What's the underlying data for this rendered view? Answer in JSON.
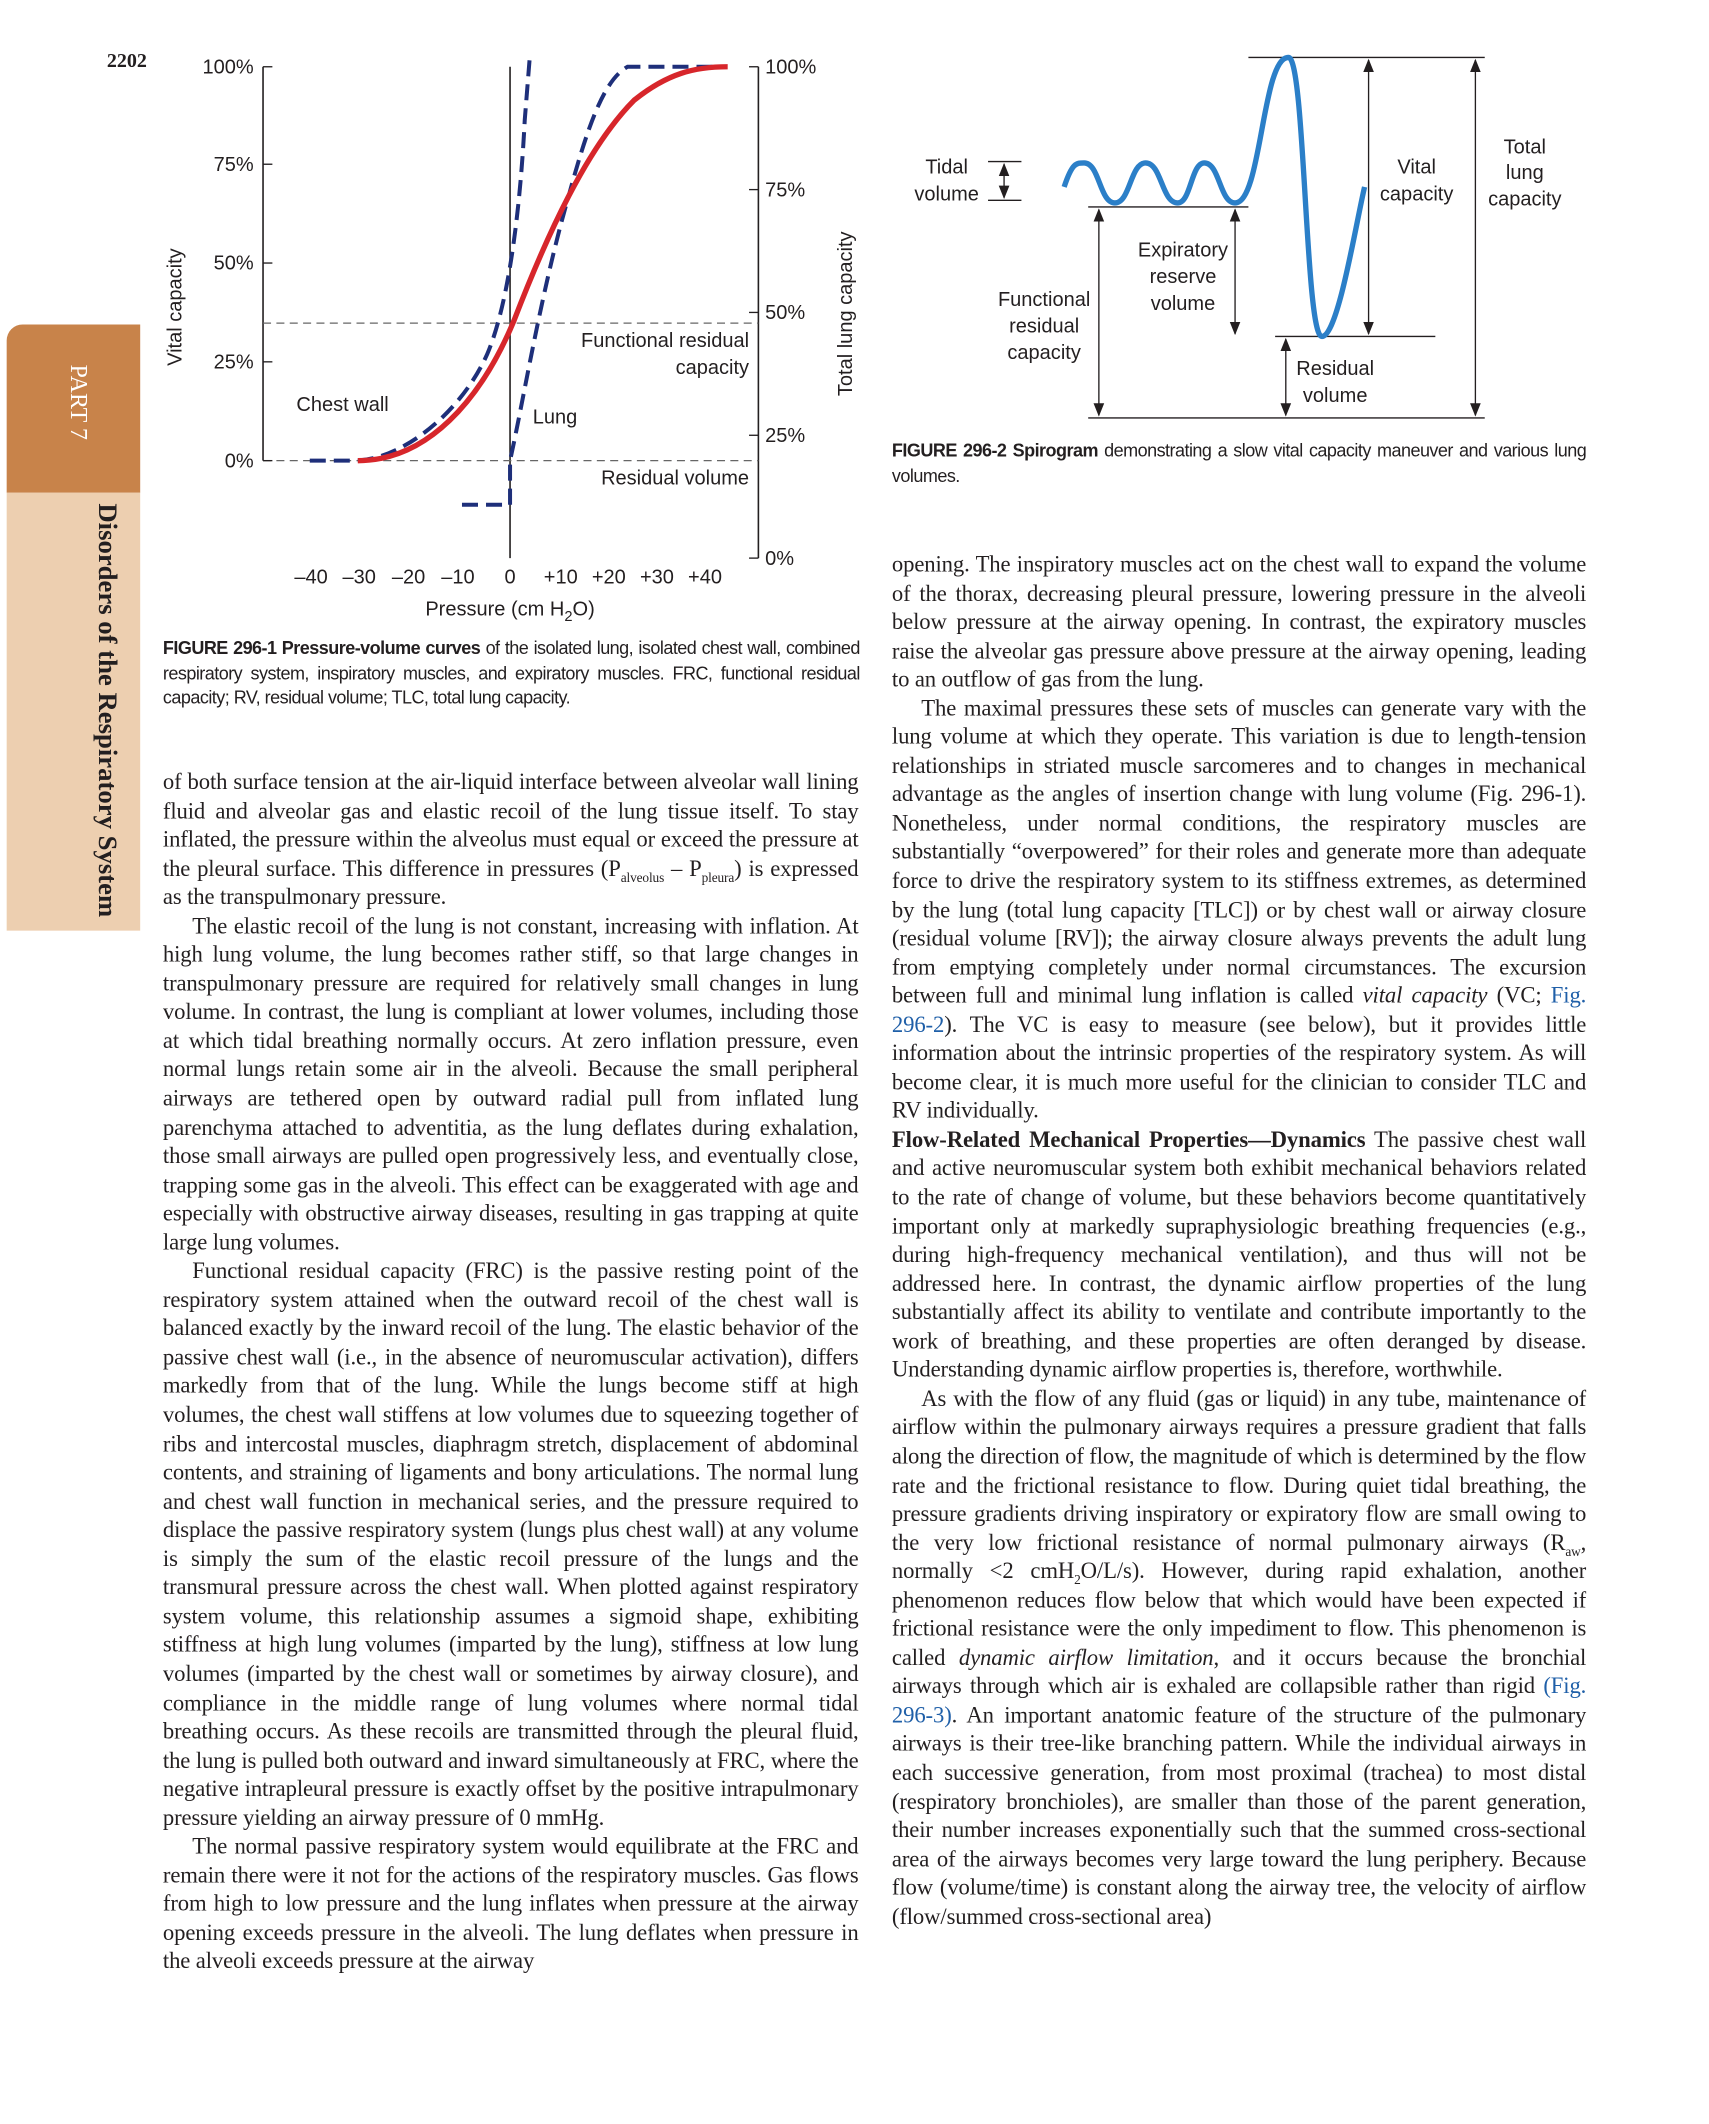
{
  "page_number": "2202",
  "side_tab": {
    "part": "PART 7",
    "section": "Disorders of the Respiratory System"
  },
  "figure_1": {
    "y_left_ticks": [
      "100%",
      "75%",
      "50%",
      "25%",
      "0%"
    ],
    "y_right_ticks": [
      "100%",
      "75%",
      "50%",
      "25%",
      "0%"
    ],
    "x_ticks": [
      "–40",
      "–30",
      "–20",
      "–10",
      "0",
      "+10",
      "+20",
      "+30",
      "+40"
    ],
    "y_left_label": "Vital capacity",
    "y_right_label": "Total lung capacity",
    "x_label": [
      "Pressure (cm H",
      {
        "sub": "2"
      },
      "O)"
    ],
    "chest_wall": "Chest wall",
    "lung": "Lung",
    "frc": [
      "Functional residual",
      "capacity"
    ],
    "rv": "Residual volume",
    "caption": [
      {
        "b": "FIGURE 296-1 Pressure-volume curves"
      },
      " of the isolated lung, isolated chest wall, combined respiratory system, inspiratory muscles, and expiratory muscles. FRC, functional residual capacity; RV, residual volume; TLC, total lung capacity."
    ]
  },
  "figure_2": {
    "tidal": [
      "Tidal",
      "volume"
    ],
    "erv": [
      "Expiratory",
      "reserve",
      "volume"
    ],
    "frc": [
      "Functional",
      "residual",
      "capacity"
    ],
    "rv": [
      "Residual",
      "volume"
    ],
    "vc": [
      "Vital",
      "capacity"
    ],
    "tlc": [
      "Total",
      "lung",
      "capacity"
    ],
    "caption": [
      {
        "b": "FIGURE 296-2 Spirogram"
      },
      " demonstrating a slow vital capacity maneuver and various lung volumes."
    ]
  },
  "left_column": [
    [
      "of both surface tension at the air-liquid interface between alveolar wall lining fluid and alveolar gas and elastic recoil of the lung tissue itself. To stay inflated, the pressure within the alveolus must equal or exceed the pressure at the pleural surface. This difference in pressures (P",
      {
        "sub": "alveolus"
      },
      " – P",
      {
        "sub": "pleura"
      },
      ") is expressed as the transpulmonary pressure."
    ],
    [
      "The elastic recoil of the lung is not constant, increasing with inflation. At high lung volume, the lung becomes rather stiff, so that large changes in transpulmonary pressure are required for relatively small changes in lung volume. In contrast, the lung is compliant at lower volumes, including those at which tidal breathing normally occurs. At zero inflation pressure, even normal lungs retain some air in the alveoli. Because the small peripheral airways are tethered open by outward radial pull from inflated lung parenchyma attached to adventitia, as the lung deflates during exhalation, those small airways are pulled open progressively less, and eventually close, trapping some gas in the alveoli. This effect can be exaggerated with age and especially with obstructive airway diseases, resulting in gas trapping at quite large lung volumes."
    ],
    [
      "Functional residual capacity (FRC) is the passive resting point of the respiratory system attained when the outward recoil of the chest wall is balanced exactly by the inward recoil of the lung. The elastic behavior of the passive chest wall (i.e., in the absence of neuromuscular activation), differs markedly from that of the lung. While the lungs become stiff at high volumes, the chest wall stiffens at low volumes due to squeezing together of ribs and intercostal muscles, diaphragm stretch, displacement of abdominal contents, and straining of ligaments and bony articulations. The normal lung and chest wall function in mechanical series, and the pressure required to displace the passive respiratory system (lungs plus chest wall) at any volume is simply the sum of the elastic recoil pressure of the lungs and the transmural pressure across the chest wall. When plotted against respiratory system volume, this relationship assumes a sigmoid shape, exhibiting stiffness at high lung volumes (imparted by the lung), stiffness at low lung volumes (imparted by the chest wall or sometimes by airway closure), and compliance in the middle range of lung volumes where normal tidal breathing occurs. As these recoils are transmitted through the pleural fluid, the lung is pulled both outward and inward simultaneously at FRC, where the negative intrapleural pressure is exactly offset by the positive intrapulmonary pressure yielding an airway pressure of 0 mmHg."
    ],
    [
      "The normal passive respiratory system would equilibrate at the FRC and remain there were it not for the actions of the respiratory muscles. Gas flows from high to low pressure and the lung inflates when pressure at the airway opening exceeds pressure in the alveoli. The lung deflates when pressure in the alveoli exceeds pressure at the airway"
    ]
  ],
  "right_column": [
    [
      "opening. The inspiratory muscles act on the chest wall to expand the volume of the thorax, decreasing pleural pressure, lowering pressure in the alveoli below pressure at the airway opening. In contrast, the expiratory muscles raise the alveolar gas pressure above pressure at the airway opening, leading to an outflow of gas from the lung."
    ],
    [
      "The maximal pressures these sets of muscles can generate vary with the lung volume at which they operate. This variation is due to length-tension relationships in striated muscle sarcomeres and to changes in mechanical advantage as the angles of insertion change with lung volume (Fig. 296-1). Nonetheless, under normal conditions, the respiratory muscles are substantially “overpowered” for their roles and generate more than adequate force to drive the respiratory system to its stiffness extremes, as determined by the lung (total lung capacity [TLC]) or by chest wall or airway closure (residual volume [RV]); the airway closure always prevents the adult lung from emptying completely under normal circumstances. The excursion between full and minimal lung inflation is called ",
      {
        "i": "vital capacity"
      },
      " (VC; ",
      {
        "a": "Fig. 296-2"
      },
      "). The VC is easy to measure (see below), but it provides little information about the intrinsic properties of the respiratory system. As will become clear, it is much more useful for the clinician to consider TLC and RV individually."
    ],
    [
      {
        "b": "Flow-Related Mechanical Properties—Dynamics"
      },
      "  The passive chest wall and active neuromuscular system both exhibit mechanical behaviors related to the rate of change of volume, but these behaviors become quantitatively important only at markedly supraphysiologic breathing frequencies (e.g., during high-frequency mechanical ventilation), and thus will not be addressed here. In contrast, the dynamic airflow properties of the lung substantially affect its ability to ventilate and contribute importantly to the work of breathing, and these properties are often deranged by disease. Understanding dynamic airflow properties is, therefore, worthwhile."
    ],
    [
      "As with the flow of any fluid (gas or liquid) in any tube, maintenance of airflow within the pulmonary airways requires a pressure gradient that falls along the direction of flow, the magnitude of which is determined by the flow rate and the frictional resistance to flow. During quiet tidal breathing, the pressure gradients driving inspiratory or expiratory flow are small owing to the very low frictional resistance of normal pulmonary airways (R",
      {
        "sub": "aw"
      },
      ", normally <2 cmH",
      {
        "sub": "2"
      },
      "O/L/s). However, during rapid exhalation, another phenomenon reduces flow below that which would have been expected if frictional resistance were the only impediment to flow. This phenomenon is called ",
      {
        "i": "dynamic airflow limitation"
      },
      ", and it occurs because the bronchial airways through which air is exhaled are collapsible rather than rigid ",
      {
        "a": "(Fig. 296-3)"
      },
      ". An important anatomic feature of the structure of the pulmonary airways is their tree-like branching pattern. While the individual airways in each successive generation, from most proximal (trachea) to most distal (respiratory bronchioles), are smaller than those of the parent generation, their number increases exponentially such that the summed cross-sectional area of the airways becomes very large toward the lung periphery. Because flow (volume/time) is constant along the airway tree, the velocity of airflow (flow/summed cross-sectional area)"
    ]
  ]
}
